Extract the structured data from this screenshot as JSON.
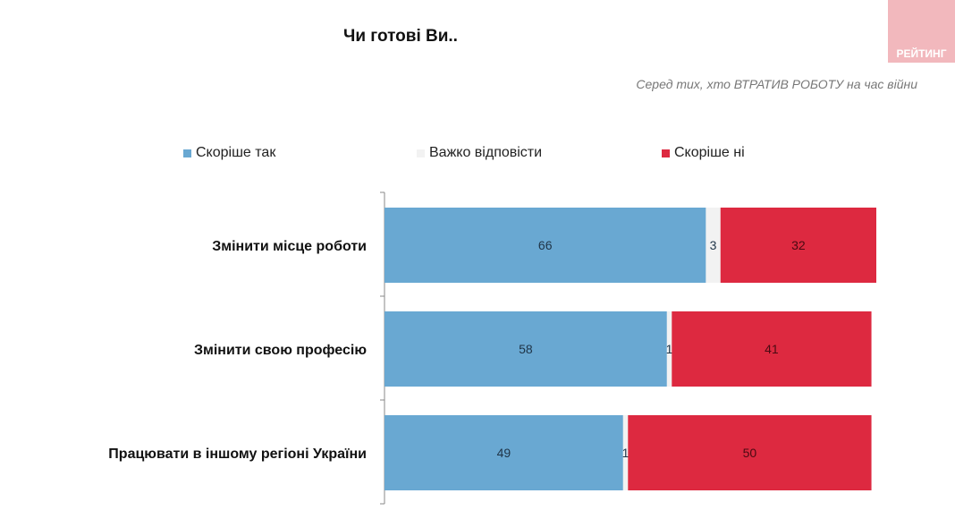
{
  "logo_text": "РЕЙТИНГ",
  "colors": {
    "yes": "#69a8d2",
    "hard": "#f2f2f2",
    "no": "#dd2940"
  },
  "chart_data": {
    "type": "bar",
    "orientation": "horizontal-stacked",
    "title": "Чи готові Ви..",
    "subtitle": "Серед тих, хто ВТРАТИВ РОБОТУ на час війни",
    "legend_position": "top",
    "categories": [
      "Змінити місце роботи",
      "Змінити свою професію",
      "Працювати в іншому регіоні України"
    ],
    "series": [
      {
        "name": "Скоріше так",
        "values": [
          66,
          58,
          49
        ]
      },
      {
        "name": "Важко відповісти",
        "values": [
          3,
          1,
          1
        ]
      },
      {
        "name": "Скоріше ні",
        "values": [
          32,
          41,
          50
        ]
      }
    ]
  }
}
